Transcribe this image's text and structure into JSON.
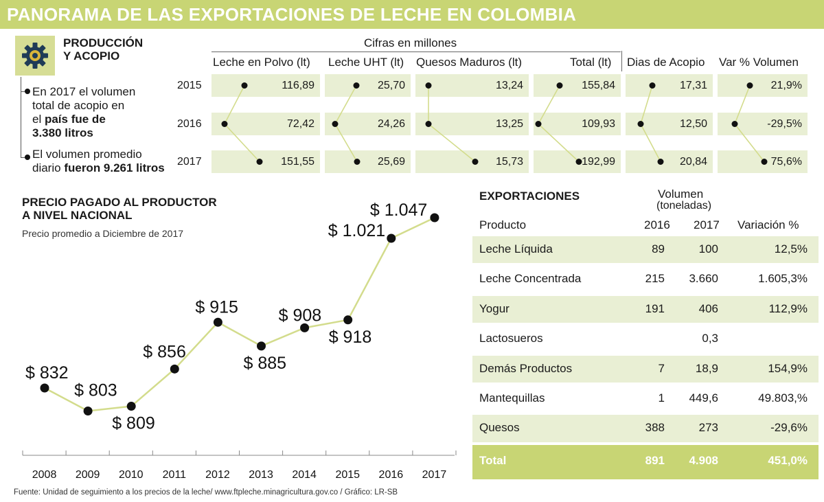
{
  "title": "PANORAMA DE LAS EXPORTACIONES DE LECHE EN COLOMBIA",
  "produccion": {
    "title_line1": "PRODUCCIÓN",
    "title_line2": "Y ACOPIO",
    "bullet1": [
      "En 2017 el volumen",
      "total de acopio en",
      "el ",
      "país fue de",
      "3.380 litros"
    ],
    "bullet2": [
      "El volumen promedio",
      "diario ",
      "fueron 9.261 litros"
    ]
  },
  "acopio_table": {
    "caption": "Cifras en millones",
    "years": [
      "2015",
      "2016",
      "2017"
    ],
    "columns": [
      {
        "label": "Leche en Polvo (lt)",
        "values": [
          "116,89",
          "72,42",
          "151,55"
        ]
      },
      {
        "label": "Leche UHT (lt)",
        "values": [
          "25,70",
          "24,26",
          "25,69"
        ]
      },
      {
        "label": "Quesos Maduros (lt)",
        "values": [
          "13,24",
          "13,25",
          "15,73"
        ]
      },
      {
        "label": "Total (lt)",
        "values": [
          "155,84",
          "109,93",
          "192,99"
        ]
      },
      {
        "label": "Dias de Acopio",
        "values": [
          "17,31",
          "12,50",
          "20,84"
        ]
      },
      {
        "label": "Var % Volumen",
        "values": [
          "21,9%",
          "-29,5%",
          "75,6%"
        ]
      }
    ]
  },
  "chart_data": {
    "type": "line",
    "title": "PRECIO PAGADO AL PRODUCTOR A NIVEL NACIONAL",
    "title_line1": "PRECIO PAGADO AL PRODUCTOR",
    "title_line2": "A NIVEL NACIONAL",
    "subtitle": "Precio promedio  a  Diciembre de 2017",
    "categories": [
      "2008",
      "2009",
      "2010",
      "2011",
      "2012",
      "2013",
      "2014",
      "2015",
      "2016",
      "2017"
    ],
    "values": [
      832,
      803,
      809,
      856,
      915,
      885,
      908,
      918,
      1021,
      1047
    ],
    "data_labels": [
      "$ 832",
      "$ 803",
      "$ 809",
      "$ 856",
      "$ 915",
      "$ 885",
      "$ 908",
      "$ 918",
      "$ 1.021",
      "$ 1.047"
    ],
    "ylim": [
      780,
      1060
    ],
    "line_color": "#d3dc8c",
    "grid": false
  },
  "exportaciones": {
    "title": "EXPORTACIONES",
    "volumen_label": "Volumen",
    "toneladas_label": "(toneladas)",
    "headers": {
      "producto": "Producto",
      "y2016": "2016",
      "y2017": "2017",
      "variacion": "Variación %"
    },
    "rows": [
      {
        "producto": "Leche Líquida",
        "v2016": "89",
        "v2017": "100",
        "var": "12,5%"
      },
      {
        "producto": "Leche Concentrada",
        "v2016": "215",
        "v2017": "3.660",
        "var": "1.605,3%"
      },
      {
        "producto": "Yogur",
        "v2016": "191",
        "v2017": "406",
        "var": "112,9%"
      },
      {
        "producto": "Lactosueros",
        "v2016": "",
        "v2017": "0,3",
        "var": ""
      },
      {
        "producto": "Demás Productos",
        "v2016": "7",
        "v2017": "18,9",
        "var": "154,9%"
      },
      {
        "producto": "Mantequillas",
        "v2016": "1",
        "v2017": "449,6",
        "var": "49.803,%"
      },
      {
        "producto": "Quesos",
        "v2016": "388",
        "v2017": "273",
        "var": "-29,6%"
      }
    ],
    "total": {
      "producto": "Total",
      "v2016": "891",
      "v2017": "4.908",
      "var": "451,0%"
    }
  },
  "footer": "Fuente: Unidad de seguimiento a los precios de la leche/ www.ftpleche.minagricultura.gov.co  / Gráfico: LR-SB",
  "colors": {
    "accent": "#c8d574",
    "cell_bg": "#e9efd4",
    "gear": "#1f3b57",
    "gear_inner": "#d9b53a"
  },
  "icons": {
    "gear": "gear-icon"
  }
}
